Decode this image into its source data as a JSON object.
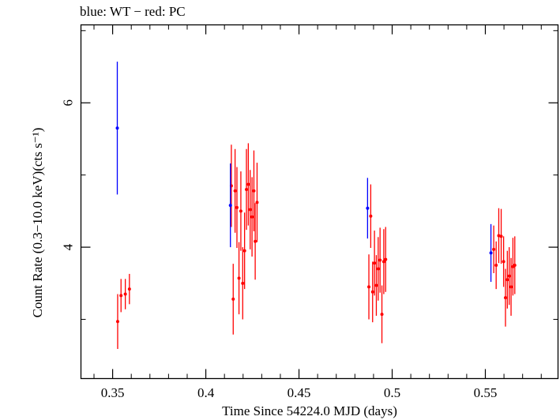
{
  "chart_data": {
    "type": "scatter",
    "title": "blue: WT − red: PC",
    "xlabel": "Time Since 54224.0 MJD (days)",
    "ylabel": "Count Rate (0.3−10.0 keV)(cts s⁻¹)",
    "xlim": [
      0.333,
      0.589
    ],
    "ylim": [
      2.18,
      7.08
    ],
    "x_ticks": [
      {
        "value": 0.35,
        "label": "0.35"
      },
      {
        "value": 0.4,
        "label": "0.4"
      },
      {
        "value": 0.45,
        "label": "0.45"
      },
      {
        "value": 0.5,
        "label": "0.5"
      },
      {
        "value": 0.55,
        "label": "0.55"
      }
    ],
    "y_ticks": [
      {
        "value": 4,
        "label": "4"
      },
      {
        "value": 6,
        "label": "6"
      }
    ],
    "grid": false,
    "colors": {
      "WT": "#0000ff",
      "PC": "#ff0000"
    },
    "series": [
      {
        "name": "WT",
        "color": "#0000ff",
        "points": [
          {
            "x": 0.3525,
            "y": 5.65,
            "err": 0.92
          },
          {
            "x": 0.4132,
            "y": 4.58,
            "err": 0.58
          },
          {
            "x": 0.4868,
            "y": 4.54,
            "err": 0.42
          },
          {
            "x": 0.553,
            "y": 3.92,
            "err": 0.4
          }
        ]
      },
      {
        "name": "PC",
        "color": "#ff0000",
        "points": [
          {
            "x": 0.3527,
            "y": 2.97,
            "err": 0.38
          },
          {
            "x": 0.3545,
            "y": 3.33,
            "err": 0.23
          },
          {
            "x": 0.3568,
            "y": 3.35,
            "err": 0.21
          },
          {
            "x": 0.359,
            "y": 3.42,
            "err": 0.21
          },
          {
            "x": 0.4137,
            "y": 4.85,
            "err": 0.57
          },
          {
            "x": 0.4147,
            "y": 3.28,
            "err": 0.49
          },
          {
            "x": 0.4157,
            "y": 4.78,
            "err": 0.58
          },
          {
            "x": 0.4167,
            "y": 4.55,
            "err": 0.56
          },
          {
            "x": 0.4178,
            "y": 3.57,
            "err": 0.5
          },
          {
            "x": 0.4188,
            "y": 4.5,
            "err": 0.55
          },
          {
            "x": 0.4198,
            "y": 3.5,
            "err": 0.5
          },
          {
            "x": 0.4208,
            "y": 3.95,
            "err": 0.53
          },
          {
            "x": 0.4218,
            "y": 4.8,
            "err": 0.56
          },
          {
            "x": 0.4228,
            "y": 4.87,
            "err": 0.57
          },
          {
            "x": 0.4238,
            "y": 4.52,
            "err": 0.55
          },
          {
            "x": 0.4248,
            "y": 4.42,
            "err": 0.55
          },
          {
            "x": 0.4258,
            "y": 4.78,
            "err": 0.56
          },
          {
            "x": 0.4265,
            "y": 4.08,
            "err": 0.53
          },
          {
            "x": 0.4275,
            "y": 4.62,
            "err": 0.55
          },
          {
            "x": 0.4875,
            "y": 3.45,
            "err": 0.45
          },
          {
            "x": 0.4885,
            "y": 4.43,
            "err": 0.44
          },
          {
            "x": 0.4895,
            "y": 3.38,
            "err": 0.42
          },
          {
            "x": 0.4905,
            "y": 3.78,
            "err": 0.45
          },
          {
            "x": 0.4915,
            "y": 3.47,
            "err": 0.42
          },
          {
            "x": 0.4925,
            "y": 3.7,
            "err": 0.44
          },
          {
            "x": 0.4935,
            "y": 3.82,
            "err": 0.45
          },
          {
            "x": 0.4945,
            "y": 3.07,
            "err": 0.4
          },
          {
            "x": 0.4955,
            "y": 3.8,
            "err": 0.45
          },
          {
            "x": 0.4965,
            "y": 3.83,
            "err": 0.45
          },
          {
            "x": 0.5545,
            "y": 3.97,
            "err": 0.33
          },
          {
            "x": 0.5558,
            "y": 3.75,
            "err": 0.33
          },
          {
            "x": 0.5572,
            "y": 4.16,
            "err": 0.38
          },
          {
            "x": 0.5585,
            "y": 4.15,
            "err": 0.38
          },
          {
            "x": 0.5598,
            "y": 3.8,
            "err": 0.35
          },
          {
            "x": 0.5608,
            "y": 3.3,
            "err": 0.4
          },
          {
            "x": 0.5618,
            "y": 3.55,
            "err": 0.4
          },
          {
            "x": 0.5628,
            "y": 3.6,
            "err": 0.4
          },
          {
            "x": 0.5638,
            "y": 3.45,
            "err": 0.4
          },
          {
            "x": 0.5648,
            "y": 3.73,
            "err": 0.4
          },
          {
            "x": 0.5658,
            "y": 3.75,
            "err": 0.4
          }
        ]
      }
    ]
  }
}
